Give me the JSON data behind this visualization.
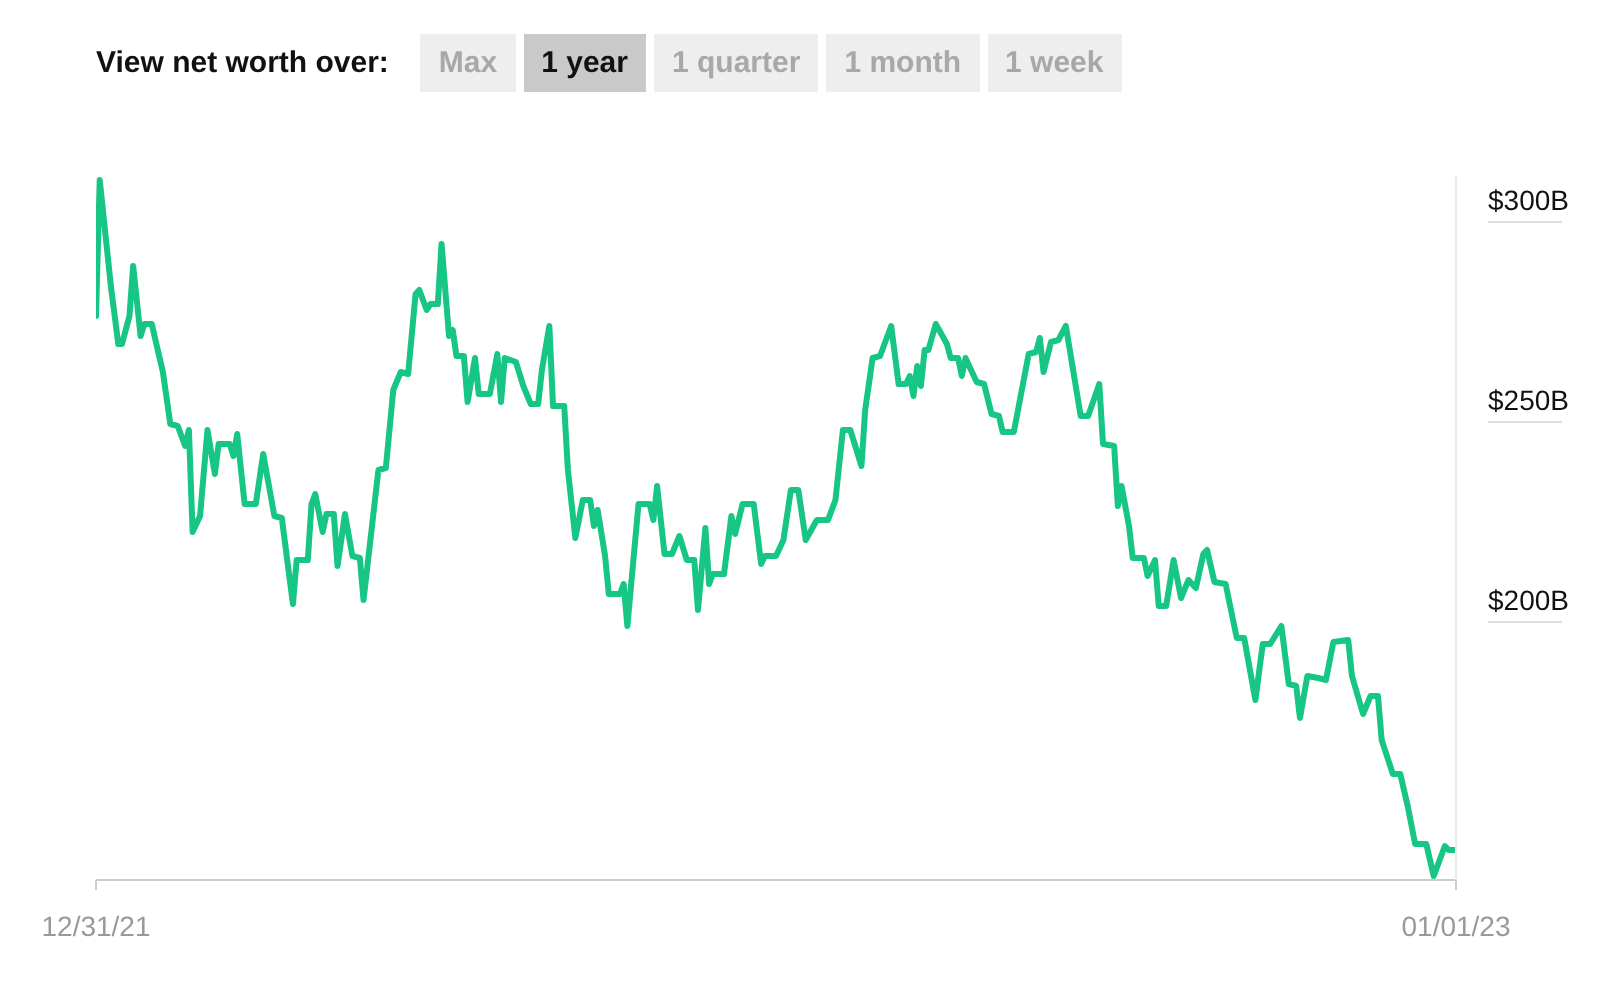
{
  "chart_data": {
    "type": "line",
    "title": "View net worth over:",
    "annotations": [
      "Max",
      "1 year",
      "1 quarter",
      "1 month",
      "1 week"
    ],
    "x": [
      "2021-12-31",
      "2022-01-01",
      "2022-01-04",
      "2022-01-06",
      "2022-01-07",
      "2022-01-09",
      "2022-01-10",
      "2022-01-12",
      "2022-01-13",
      "2022-01-15",
      "2022-01-18",
      "2022-01-20",
      "2022-01-22",
      "2022-01-24",
      "2022-01-25",
      "2022-01-26",
      "2022-01-28",
      "2022-01-30",
      "2022-02-01",
      "2022-02-02",
      "2022-02-05",
      "2022-02-06",
      "2022-02-07",
      "2022-02-09",
      "2022-02-12",
      "2022-02-14",
      "2022-02-17",
      "2022-02-19",
      "2022-02-22",
      "2022-02-23",
      "2022-02-26",
      "2022-02-27",
      "2022-02-28",
      "2022-03-02",
      "2022-03-03",
      "2022-03-05",
      "2022-03-06",
      "2022-03-08",
      "2022-03-10",
      "2022-03-12",
      "2022-03-13",
      "2022-03-17",
      "2022-03-19",
      "2022-03-21",
      "2022-03-23",
      "2022-03-25",
      "2022-03-27",
      "2022-03-28",
      "2022-03-30",
      "2022-03-31",
      "2022-04-02",
      "2022-04-03",
      "2022-04-05",
      "2022-04-06",
      "2022-04-07",
      "2022-04-09",
      "2022-04-10",
      "2022-04-12",
      "2022-04-13",
      "2022-04-16",
      "2022-04-18",
      "2022-04-19",
      "2022-04-20",
      "2022-04-23",
      "2022-04-25",
      "2022-04-27",
      "2022-04-29",
      "2022-04-30",
      "2022-05-02",
      "2022-05-03",
      "2022-05-06",
      "2022-05-07",
      "2022-05-09",
      "2022-05-11",
      "2022-05-13",
      "2022-05-14",
      "2022-05-15",
      "2022-05-17",
      "2022-05-18",
      "2022-05-21",
      "2022-05-22",
      "2022-05-23",
      "2022-05-26",
      "2022-05-29",
      "2022-05-30",
      "2022-05-31",
      "2022-06-02",
      "2022-06-04",
      "2022-06-06",
      "2022-06-08",
      "2022-06-10",
      "2022-06-11",
      "2022-06-13",
      "2022-06-14",
      "2022-06-15",
      "2022-06-18",
      "2022-06-20",
      "2022-06-21",
      "2022-06-23",
      "2022-06-26",
      "2022-06-28",
      "2022-06-29",
      "2022-07-02",
      "2022-07-04",
      "2022-07-06",
      "2022-07-08",
      "2022-07-10",
      "2022-07-13",
      "2022-07-16",
      "2022-07-18",
      "2022-07-20",
      "2022-07-22",
      "2022-07-25",
      "2022-07-26",
      "2022-07-28",
      "2022-07-30",
      "2022-08-02",
      "2022-08-04",
      "2022-08-06",
      "2022-08-07",
      "2022-08-08",
      "2022-08-09",
      "2022-08-10",
      "2022-08-11",
      "2022-08-12",
      "2022-08-14",
      "2022-08-17",
      "2022-08-18",
      "2022-08-20",
      "2022-08-21",
      "2022-08-22",
      "2022-08-25",
      "2022-08-27",
      "2022-08-29",
      "2022-08-31",
      "2022-09-01",
      "2022-09-04",
      "2022-09-08",
      "2022-09-10",
      "2022-09-11",
      "2022-09-12",
      "2022-09-14",
      "2022-09-16",
      "2022-09-18",
      "2022-09-22",
      "2022-09-24",
      "2022-09-27",
      "2022-09-28",
      "2022-10-01",
      "2022-10-02",
      "2022-10-03",
      "2022-10-05",
      "2022-10-06",
      "2022-10-09",
      "2022-10-10",
      "2022-10-12",
      "2022-10-13",
      "2022-10-15",
      "2022-10-17",
      "2022-10-19",
      "2022-10-21",
      "2022-10-23",
      "2022-10-25",
      "2022-10-26",
      "2022-10-28",
      "2022-10-31",
      "2022-11-02",
      "2022-11-03",
      "2022-11-05",
      "2022-11-08",
      "2022-11-10",
      "2022-11-12",
      "2022-11-15",
      "2022-11-17",
      "2022-11-19",
      "2022-11-20",
      "2022-11-22",
      "2022-11-25",
      "2022-11-27",
      "2022-11-29",
      "2022-12-03",
      "2022-12-04",
      "2022-12-07",
      "2022-12-09",
      "2022-12-11",
      "2022-12-12",
      "2022-12-15",
      "2022-12-17",
      "2022-12-19",
      "2022-12-21",
      "2022-12-24",
      "2022-12-26",
      "2022-12-29",
      "2022-12-30",
      "2023-01-01"
    ],
    "series": [
      {
        "color": "#17c585",
        "values": [
          271,
          305,
          278.5,
          264,
          264,
          271,
          283.5,
          266,
          269,
          269,
          257,
          244,
          243.5,
          238.5,
          242.5,
          217,
          221,
          242.5,
          231.5,
          239,
          239,
          236,
          241.5,
          224,
          224,
          236.5,
          221,
          220.5,
          199,
          210,
          210,
          224,
          226.5,
          217,
          221.5,
          221.5,
          208.5,
          221.5,
          211,
          210.5,
          200,
          232.5,
          233,
          252.5,
          257,
          256.5,
          276.5,
          277.5,
          272.5,
          274,
          274,
          289,
          266,
          267.5,
          261,
          261,
          249.5,
          260.5,
          251.5,
          251.5,
          261.5,
          249.5,
          260.5,
          259.5,
          253.5,
          249,
          249,
          257.5,
          268.5,
          248.5,
          248.5,
          232.5,
          215.5,
          225,
          225,
          218.5,
          222.5,
          211,
          201.5,
          201.5,
          204,
          193.5,
          224,
          224,
          220,
          228.5,
          211.5,
          211.5,
          216,
          210,
          210,
          197.5,
          218,
          204,
          206.5,
          206.5,
          221,
          216.5,
          224,
          224,
          209,
          211,
          211,
          215,
          227.5,
          227.5,
          215,
          220,
          220,
          225,
          242.5,
          242.5,
          233.5,
          247.5,
          260.5,
          261,
          268.5,
          254,
          254,
          256,
          251,
          258.5,
          253.5,
          262.5,
          262.5,
          269,
          264,
          260.5,
          260.5,
          256,
          260.5,
          254.5,
          254,
          246.5,
          246,
          242,
          242,
          261.5,
          262,
          265.5,
          257,
          264.5,
          265,
          268.5,
          246,
          246,
          254,
          239,
          238.5,
          223.5,
          228.5,
          218.5,
          210.5,
          210.5,
          206,
          210,
          198.5,
          198.5,
          210,
          200.5,
          205,
          203,
          211.5,
          212.5,
          204.5,
          204,
          195,
          190.5,
          190.5,
          175,
          189,
          189,
          193.5,
          179,
          178.5,
          170.5,
          181,
          180.5,
          180,
          189.5,
          190,
          181,
          171.5,
          176,
          176,
          165,
          156.5,
          156.5,
          148.5,
          139,
          139,
          131,
          138.5,
          137.5,
          137.5
        ]
      }
    ],
    "xlim": [
      "2021-12-31",
      "2023-01-01"
    ],
    "xticks": [
      {
        "value": "2021-12-31",
        "label": "12/31/21"
      },
      {
        "value": "2023-01-01",
        "label": "01/01/23"
      }
    ],
    "ylim": [
      130,
      306
    ],
    "yticks": [
      {
        "value": 200,
        "label": "$200B"
      },
      {
        "value": 250,
        "label": "$250B"
      },
      {
        "value": 300,
        "label": "$300B"
      }
    ]
  }
}
